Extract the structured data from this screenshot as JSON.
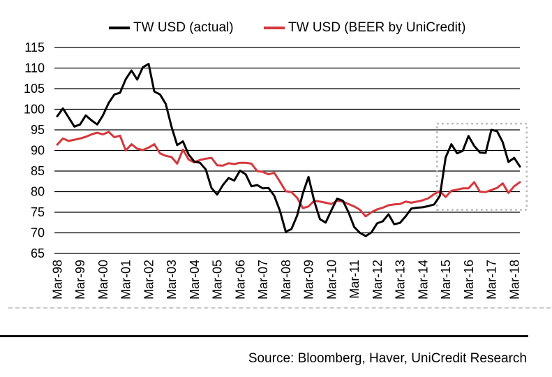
{
  "legend": [
    {
      "label": "TW USD (actual)",
      "color": "#000000"
    },
    {
      "label": "TW USD (BEER by UniCredit)",
      "color": "#d5383d"
    }
  ],
  "source_note": "Source: Bloomberg, Haver, UniCredit Research",
  "chart_data": {
    "type": "line",
    "frequency": "quarterly",
    "x_start": "Mar-98",
    "x_end": "Jun-18",
    "x_tick_labels": [
      "Mar-98",
      "Mar-99",
      "Mar-00",
      "Mar-01",
      "Mar-02",
      "Mar-03",
      "Mar-04",
      "Mar-05",
      "Mar-06",
      "Mar-07",
      "Mar-08",
      "Mar-09",
      "Mar-10",
      "Mar-11",
      "Mar-12",
      "Mar-13",
      "Mar-14",
      "Mar-15",
      "Mar-16",
      "Mar-17",
      "Mar-18"
    ],
    "x_tick_every_n_points": 4,
    "y_ticks": [
      65,
      70,
      75,
      80,
      85,
      90,
      95,
      100,
      105,
      110,
      115
    ],
    "ylim": [
      65,
      115
    ],
    "grid": "horizontal-black-lines",
    "legend_position": "top",
    "series": [
      {
        "id": "actual",
        "name": "TW USD (actual)",
        "color": "#000000",
        "values": [
          98.3,
          100.2,
          98.0,
          95.8,
          96.3,
          98.5,
          97.3,
          96.3,
          98.5,
          101.5,
          103.6,
          104.0,
          107.3,
          109.4,
          107.2,
          110.2,
          111.0,
          104.3,
          103.6,
          101.3,
          95.8,
          91.3,
          92.2,
          89.0,
          87.3,
          87.0,
          85.4,
          80.9,
          79.3,
          81.6,
          83.3,
          82.7,
          85.1,
          84.2,
          81.3,
          81.6,
          80.8,
          80.9,
          79.0,
          75.3,
          70.3,
          70.9,
          74.2,
          79.6,
          83.6,
          77.7,
          73.3,
          72.5,
          75.5,
          78.3,
          77.8,
          75.0,
          71.4,
          70.0,
          69.2,
          70.1,
          72.3,
          72.8,
          74.5,
          72.1,
          72.4,
          74.0,
          75.9,
          76.1,
          76.2,
          76.5,
          76.9,
          79.0,
          88.3,
          91.5,
          89.3,
          89.9,
          93.5,
          91.1,
          89.5,
          89.4,
          95.0,
          94.7,
          92.0,
          87.2,
          88.2,
          86.1
        ]
      },
      {
        "id": "beer",
        "name": "TW USD (BEER by UniCredit)",
        "color": "#d5383d",
        "values": [
          91.4,
          92.9,
          92.3,
          92.6,
          92.9,
          93.3,
          93.9,
          94.3,
          93.9,
          94.5,
          93.2,
          93.6,
          90.0,
          91.5,
          90.4,
          90.1,
          90.7,
          91.5,
          89.3,
          88.7,
          88.4,
          86.8,
          90.2,
          87.8,
          87.1,
          87.7,
          88.0,
          88.2,
          86.4,
          86.3,
          86.9,
          86.7,
          87.0,
          87.0,
          86.8,
          85.0,
          84.8,
          84.2,
          84.6,
          82.4,
          80.1,
          79.9,
          78.5,
          76.0,
          76.4,
          77.8,
          77.6,
          77.3,
          77.0,
          77.8,
          77.6,
          77.0,
          76.4,
          75.6,
          74.0,
          75.0,
          75.7,
          76.1,
          76.7,
          76.9,
          77.0,
          77.6,
          77.3,
          77.6,
          77.9,
          78.4,
          79.4,
          80.1,
          78.7,
          80.2,
          80.5,
          80.8,
          80.8,
          82.3,
          80.0,
          79.9,
          80.4,
          80.9,
          82.0,
          79.7,
          81.3,
          82.3
        ]
      }
    ],
    "highlight_box": {
      "x_index_range": [
        66.5,
        82.2
      ],
      "value_range": [
        75.6,
        96.5
      ],
      "color": "#b3b3b3",
      "style": "dotted"
    }
  }
}
